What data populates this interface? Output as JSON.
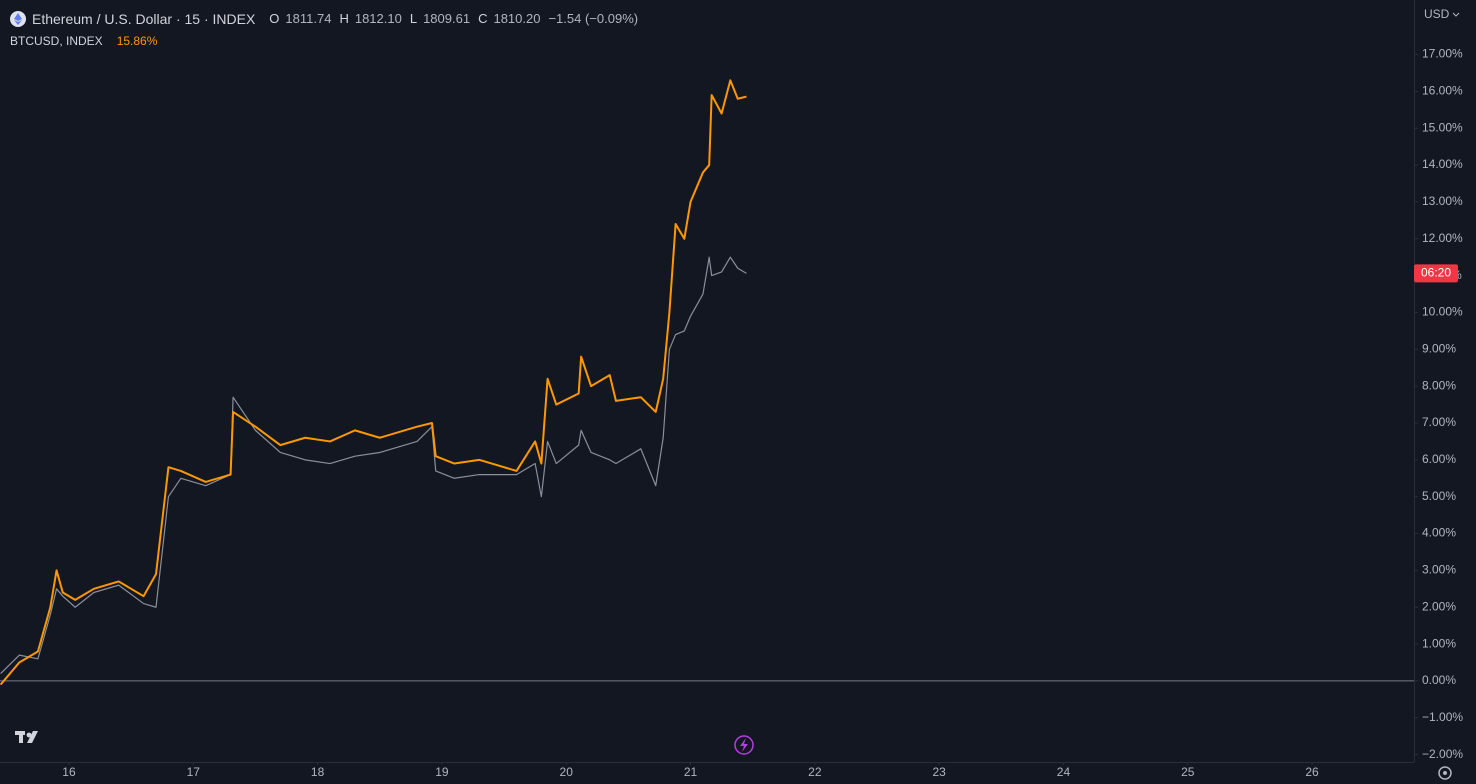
{
  "currency": "USD",
  "ohlc": {
    "open_label": "O",
    "open": "1811.74",
    "high_label": "H",
    "high": "1812.10",
    "low_label": "L",
    "low": "1809.61",
    "close_label": "C",
    "close": "1810.20",
    "change": "−1.54 (−0.09%)"
  },
  "countdown": "06:20",
  "chart_data": {
    "type": "line",
    "x": [
      15.45,
      15.6,
      15.75,
      15.85,
      15.9,
      15.95,
      16.05,
      16.2,
      16.4,
      16.6,
      16.7,
      16.8,
      16.9,
      17.1,
      17.3,
      17.32,
      17.5,
      17.7,
      17.9,
      18.1,
      18.3,
      18.5,
      18.8,
      18.92,
      18.95,
      19.1,
      19.3,
      19.6,
      19.75,
      19.8,
      19.85,
      19.92,
      20.1,
      20.12,
      20.2,
      20.35,
      20.4,
      20.6,
      20.72,
      20.78,
      20.83,
      20.88,
      20.95,
      21.0,
      21.1,
      21.15,
      21.17,
      21.25,
      21.32,
      21.38,
      21.45
    ],
    "series": [
      {
        "name": "Ethereum / U.S. Dollar · 15 · INDEX",
        "color": "#8a8f9c",
        "values": [
          0.2,
          0.7,
          0.6,
          1.8,
          2.5,
          2.3,
          2.0,
          2.4,
          2.6,
          2.1,
          2.0,
          5.0,
          5.5,
          5.3,
          5.6,
          7.7,
          6.8,
          6.2,
          6.0,
          5.9,
          6.1,
          6.2,
          6.5,
          6.9,
          5.7,
          5.5,
          5.6,
          5.6,
          5.9,
          5.0,
          6.5,
          5.9,
          6.4,
          6.8,
          6.2,
          6.0,
          5.9,
          6.3,
          5.3,
          6.6,
          9.0,
          9.4,
          9.5,
          9.9,
          10.5,
          11.5,
          11.0,
          11.1,
          11.5,
          11.2,
          11.06
        ]
      },
      {
        "name": "BTCUSD, INDEX",
        "color": "#ff9800",
        "value_label": "15.86%",
        "values": [
          -0.1,
          0.5,
          0.8,
          2.0,
          3.0,
          2.4,
          2.2,
          2.5,
          2.7,
          2.3,
          2.9,
          5.8,
          5.7,
          5.4,
          5.6,
          7.3,
          6.9,
          6.4,
          6.6,
          6.5,
          6.8,
          6.6,
          6.9,
          7.0,
          6.1,
          5.9,
          6.0,
          5.7,
          6.5,
          5.9,
          8.2,
          7.5,
          7.8,
          8.8,
          8.0,
          8.3,
          7.6,
          7.7,
          7.3,
          8.2,
          10.0,
          12.4,
          12.0,
          13.0,
          13.8,
          14.0,
          15.9,
          15.4,
          16.3,
          15.8,
          15.86
        ]
      }
    ],
    "xlim": [
      15.445,
      26.82
    ],
    "xticks": [
      16,
      17,
      18,
      19,
      20,
      21,
      22,
      23,
      24,
      25,
      26
    ],
    "ylim": [
      -2.2,
      18.48
    ],
    "yticks": [
      {
        "value": -2,
        "label": "−2.00%"
      },
      {
        "value": -1,
        "label": "−1.00%"
      },
      {
        "value": 0,
        "label": "0.00%"
      },
      {
        "value": 1,
        "label": "1.00%"
      },
      {
        "value": 2,
        "label": "2.00%"
      },
      {
        "value": 3,
        "label": "3.00%"
      },
      {
        "value": 4,
        "label": "4.00%"
      },
      {
        "value": 5,
        "label": "5.00%"
      },
      {
        "value": 6,
        "label": "6.00%"
      },
      {
        "value": 7,
        "label": "7.00%"
      },
      {
        "value": 8,
        "label": "8.00%"
      },
      {
        "value": 9,
        "label": "9.00%"
      },
      {
        "value": 10,
        "label": "10.00%"
      },
      {
        "value": 11,
        "label": "11.00%"
      },
      {
        "value": 12,
        "label": "12.00%"
      },
      {
        "value": 13,
        "label": "13.00%"
      },
      {
        "value": 14,
        "label": "14.00%"
      },
      {
        "value": 15,
        "label": "15.00%"
      },
      {
        "value": 16,
        "label": "16.00%"
      },
      {
        "value": 17,
        "label": "17.00%"
      }
    ],
    "grid": false
  }
}
